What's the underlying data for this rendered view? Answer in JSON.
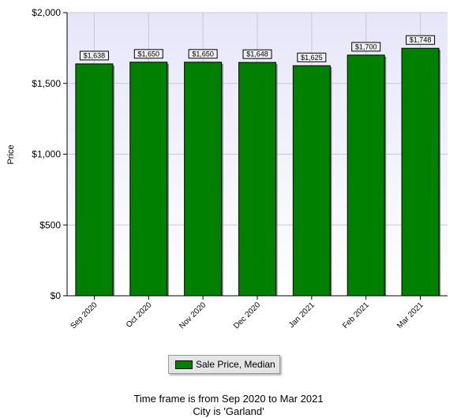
{
  "chart_data": {
    "type": "bar",
    "ylabel": "Price",
    "xlabel": "",
    "categories": [
      "Sep 2020",
      "Oct 2020",
      "Nov 2020",
      "Dec 2020",
      "Jan 2021",
      "Feb 2021",
      "Mar 2021"
    ],
    "series": [
      {
        "name": "Sale Price, Median",
        "values": [
          1638,
          1650,
          1650,
          1648,
          1625,
          1700,
          1748
        ],
        "labels": [
          "$1,638",
          "$1,650",
          "$1,650",
          "$1,648",
          "$1,625",
          "$1,700",
          "$1,748"
        ],
        "color": "#008000"
      }
    ],
    "ylim": [
      0,
      2000
    ],
    "yticks": [
      0,
      500,
      1000,
      1500,
      2000
    ],
    "ytick_labels": [
      "$0",
      "$500",
      "$1,000",
      "$1,500",
      "$2,000"
    ],
    "grid": true,
    "legend_position": "bottom-center",
    "plot_background": "#eeeef8"
  },
  "footer": {
    "line1": "Time frame is from Sep 2020 to Mar 2021",
    "line2": "City is 'Garland'"
  }
}
